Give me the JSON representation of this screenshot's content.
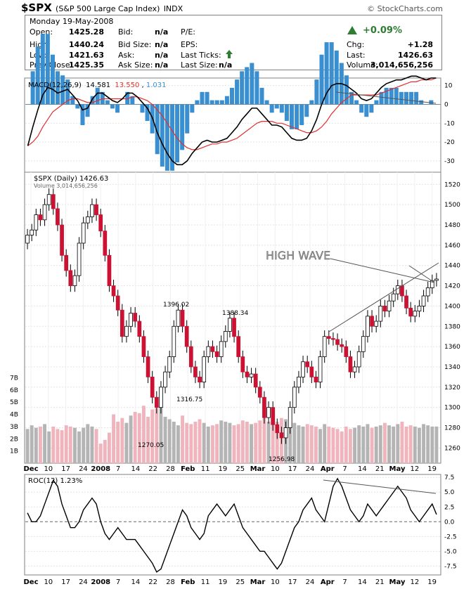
{
  "header": {
    "symbol": "$SPX",
    "description": "(S&P 500 Large Cap Index)",
    "exchange": "INDX",
    "copyright": "© StockCharts.com",
    "date": "Monday  19-May-2008"
  },
  "quote": {
    "open_label": "Open:",
    "open": "1425.28",
    "high_label": "High:",
    "high": "1440.24",
    "low_label": "Low:",
    "low": "1421.63",
    "prev_label": "Prev Close:",
    "prev": "1425.35",
    "bid_label": "Bid:",
    "bid": "n/a",
    "bidsize_label": "Bid Size:",
    "bidsize": "n/a",
    "ask_label": "Ask:",
    "ask": "n/a",
    "asksize_label": "Ask Size:",
    "asksize": "n/a",
    "pe_label": "P/E:",
    "eps_label": "EPS:",
    "lastticks_label": "Last Ticks:",
    "lastsize_label": "Last Size:",
    "lastsize": "n/a",
    "chg_pct": "+0.09%",
    "chg_label": "Chg:",
    "chg": "+1.28",
    "last_label": "Last:",
    "last": "1426.63",
    "volume_label": "Volume:",
    "volume": "3,014,656,256",
    "up_color": "#2e7d32"
  },
  "chart_data": [
    {
      "type": "line",
      "title": "MACD(12,26,9)",
      "legend": [
        {
          "name": "14.581",
          "color": "#000000"
        },
        {
          "name": "13.550",
          "color": "#e03030"
        },
        {
          "name": "1.031",
          "color": "#3a8fd0"
        }
      ],
      "ylim": [
        -36,
        14
      ],
      "yticks": [
        -30,
        -20,
        -10,
        0,
        10
      ],
      "macd": [
        -22,
        -12,
        -3,
        5,
        9,
        8,
        6,
        7,
        8,
        5,
        2,
        -3,
        -2,
        3,
        6,
        6,
        4,
        2,
        1,
        3,
        6,
        6,
        4,
        1,
        -2,
        -7,
        -15,
        -21,
        -26,
        -30,
        -32,
        -32,
        -30,
        -26,
        -23,
        -20,
        -19,
        -20,
        -20,
        -19,
        -18,
        -15,
        -12,
        -8,
        -5,
        -2,
        -2,
        -5,
        -8,
        -11,
        -11,
        -12,
        -15,
        -18,
        -19,
        -19,
        -18,
        -14,
        -8,
        0,
        6,
        10,
        11,
        11,
        10,
        8,
        6,
        3,
        2,
        3,
        6,
        9,
        11,
        12,
        13,
        13,
        14,
        15,
        15,
        14,
        13,
        14,
        14
      ],
      "signal": [
        -22,
        -20,
        -17,
        -12,
        -8,
        -4,
        -2,
        0,
        2,
        3,
        3,
        2,
        1,
        1,
        2,
        3,
        3,
        3,
        3,
        3,
        3,
        4,
        4,
        3,
        2,
        0,
        -3,
        -6,
        -10,
        -14,
        -18,
        -21,
        -23,
        -24,
        -24,
        -23,
        -22,
        -21,
        -21,
        -20,
        -20,
        -19,
        -18,
        -16,
        -14,
        -12,
        -10,
        -9,
        -9,
        -9,
        -10,
        -10,
        -11,
        -12,
        -13,
        -14,
        -15,
        -15,
        -14,
        -12,
        -9,
        -5,
        -2,
        1,
        3,
        5,
        5,
        5,
        5,
        5,
        5,
        6,
        7,
        8,
        9,
        10,
        11,
        12,
        12,
        13,
        13,
        13,
        14
      ],
      "histogram_color": "#3a8fd0",
      "trendline_color": "#444444"
    },
    {
      "type": "candlestick",
      "title": "$SPX (Daily) 1426.63",
      "volume_label": "Volume 3,014,656,256",
      "ylim": [
        1245,
        1532
      ],
      "yticks": [
        1260,
        1280,
        1300,
        1320,
        1340,
        1360,
        1380,
        1400,
        1420,
        1440,
        1460,
        1480,
        1500,
        1520
      ],
      "volume_ticks": [
        "1B",
        "2B",
        "3B",
        "4B",
        "5B",
        "6B",
        "7B"
      ],
      "volume_lim": [
        0,
        8
      ],
      "close": [
        1470,
        1475,
        1490,
        1485,
        1500,
        1510,
        1496,
        1480,
        1450,
        1435,
        1420,
        1430,
        1462,
        1482,
        1488,
        1500,
        1490,
        1474,
        1450,
        1420,
        1410,
        1396,
        1370,
        1380,
        1393,
        1385,
        1370,
        1350,
        1330,
        1310,
        1300,
        1320,
        1335,
        1350,
        1380,
        1396,
        1380,
        1360,
        1340,
        1330,
        1325,
        1350,
        1360,
        1355,
        1350,
        1365,
        1375,
        1388,
        1370,
        1350,
        1335,
        1330,
        1333,
        1320,
        1310,
        1290,
        1300,
        1283,
        1275,
        1270,
        1280,
        1300,
        1320,
        1330,
        1345,
        1340,
        1330,
        1325,
        1350,
        1370,
        1368,
        1367,
        1362,
        1360,
        1350,
        1335,
        1340,
        1355,
        1370,
        1390,
        1380,
        1385,
        1400,
        1395,
        1405,
        1412,
        1420,
        1410,
        1398,
        1390,
        1395,
        1400,
        1410,
        1418,
        1425,
        1426.63
      ],
      "open": [
        1462,
        1470,
        1475,
        1490,
        1485,
        1500,
        1510,
        1496,
        1480,
        1450,
        1435,
        1420,
        1430,
        1462,
        1482,
        1488,
        1500,
        1490,
        1474,
        1450,
        1420,
        1410,
        1396,
        1370,
        1380,
        1393,
        1385,
        1370,
        1350,
        1330,
        1310,
        1300,
        1320,
        1335,
        1350,
        1380,
        1396,
        1380,
        1360,
        1340,
        1330,
        1325,
        1350,
        1360,
        1355,
        1350,
        1365,
        1375,
        1388,
        1370,
        1350,
        1335,
        1330,
        1333,
        1320,
        1310,
        1290,
        1300,
        1283,
        1275,
        1270,
        1280,
        1300,
        1320,
        1330,
        1345,
        1340,
        1330,
        1325,
        1350,
        1370,
        1368,
        1367,
        1362,
        1360,
        1350,
        1335,
        1340,
        1355,
        1370,
        1390,
        1380,
        1385,
        1400,
        1395,
        1405,
        1412,
        1420,
        1410,
        1398,
        1390,
        1395,
        1400,
        1410,
        1418,
        1425.28
      ],
      "volume": [
        2.8,
        3.1,
        2.9,
        3.0,
        3.2,
        2.6,
        3.0,
        2.8,
        2.7,
        3.1,
        3.0,
        2.9,
        2.6,
        2.9,
        3.2,
        3.0,
        2.8,
        1.6,
        1.9,
        2.5,
        4.0,
        3.4,
        3.7,
        3.3,
        3.9,
        4.2,
        4.1,
        4.7,
        3.8,
        4.4,
        4.5,
        4.6,
        3.8,
        3.6,
        3.4,
        3.1,
        3.9,
        3.3,
        3.2,
        3.4,
        3.6,
        3.3,
        3.0,
        3.1,
        3.2,
        3.5,
        3.4,
        3.3,
        3.1,
        3.2,
        3.5,
        3.4,
        3.2,
        3.3,
        3.5,
        3.9,
        3.4,
        4.3,
        3.4,
        3.7,
        3.6,
        3.5,
        3.3,
        3.1,
        3.0,
        3.2,
        3.1,
        3.0,
        2.8,
        3.2,
        3.0,
        2.9,
        2.8,
        2.6,
        3.0,
        2.8,
        2.9,
        3.1,
        3.0,
        3.2,
        2.9,
        3.0,
        3.1,
        3.3,
        3.1,
        3.0,
        3.2,
        3.4,
        3.0,
        3.1,
        3.0,
        2.9,
        3.2,
        3.1,
        3.0,
        3.0
      ],
      "annotations": [
        {
          "label": "1396.02",
          "value": 1396.02
        },
        {
          "label": "1388.34",
          "value": 1388.34
        },
        {
          "label": "1316.75",
          "value": 1316.75
        },
        {
          "label": "1270.05",
          "value": 1270.05
        },
        {
          "label": "1256.98",
          "value": 1256.98
        }
      ],
      "callout": "HIGH WAVE",
      "up_color": "#ffffff",
      "down_color": "#cc1133",
      "volume_up_color": "#b4b4b4",
      "volume_down_color": "#f0b4bc"
    },
    {
      "type": "line",
      "title": "ROC(12) 1.23%",
      "ylim": [
        -9,
        8
      ],
      "yticks": [
        -7.5,
        -5.0,
        -2.5,
        0.0,
        2.5,
        5.0,
        7.5
      ],
      "values": [
        1.5,
        0,
        0,
        1,
        3,
        5,
        7,
        6,
        3,
        1,
        -1,
        -1,
        0,
        2,
        3,
        4,
        3,
        0,
        -2,
        -3,
        -2,
        -1,
        -2,
        -3,
        -3,
        -3,
        -4,
        -5,
        -6,
        -7,
        -8.5,
        -8,
        -6,
        -4,
        -2,
        0,
        2,
        1,
        -1,
        -2,
        -3,
        -2,
        1,
        2,
        3,
        2,
        1,
        2,
        3,
        1,
        -1,
        -2,
        -3,
        -4,
        -5,
        -5,
        -6,
        -7,
        -8,
        -7,
        -5,
        -3,
        -1,
        0,
        2,
        3,
        4,
        2,
        1,
        0,
        3,
        6,
        7.3,
        6,
        4,
        2,
        1,
        0,
        1,
        3,
        2,
        1,
        2,
        3,
        4,
        5,
        6,
        5,
        4,
        2,
        1,
        0,
        1,
        2,
        3,
        1.23
      ],
      "xticks": [
        "Dec",
        "10",
        "17",
        "24",
        "2008",
        "7",
        "14",
        "22",
        "28",
        "Feb",
        "11",
        "19",
        "25",
        "Mar",
        "10",
        "17",
        "24",
        "Apr",
        "7",
        "14",
        "21",
        "May",
        "12",
        "19"
      ]
    }
  ]
}
